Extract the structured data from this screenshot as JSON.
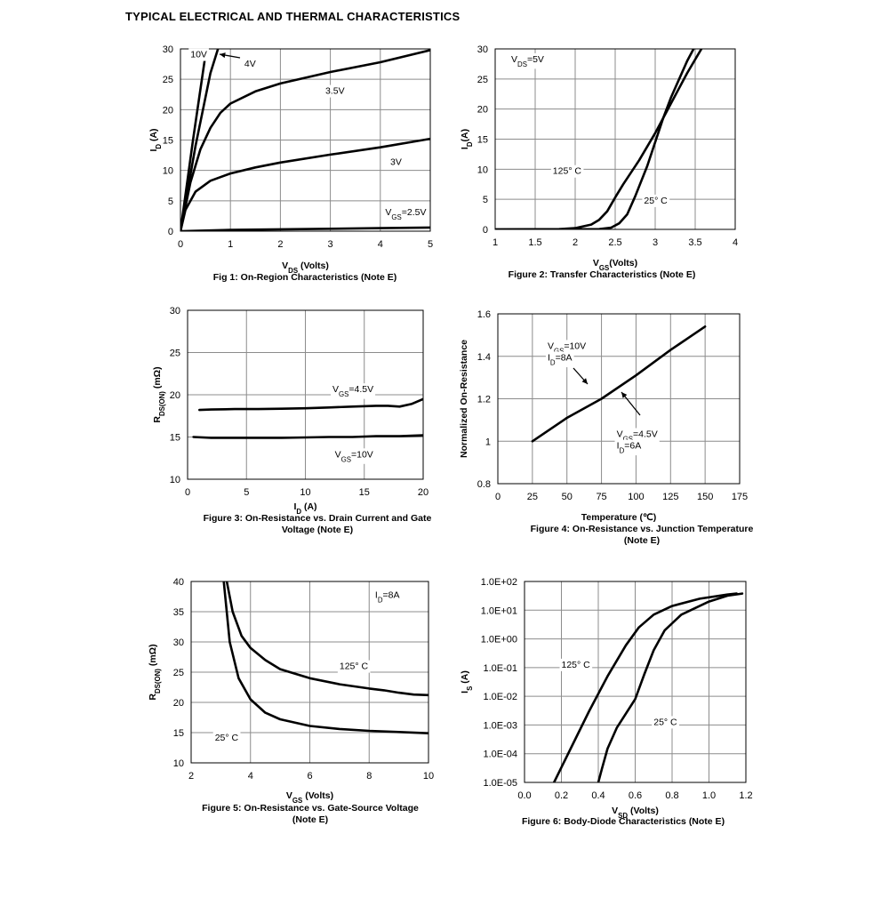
{
  "page_title": "TYPICAL ELECTRICAL AND THERMAL CHARACTERISTICS",
  "chart_data": [
    {
      "id": "fig1",
      "type": "line",
      "caption": "Fig 1: On-Region Characteristics (Note E)",
      "xlabel": "V|DS| (Volts)",
      "ylabel": "I|D| (A)",
      "xlim": [
        0,
        5
      ],
      "ylim": [
        0,
        30
      ],
      "xticks": [
        0,
        1,
        2,
        3,
        4,
        5
      ],
      "yticks": [
        0,
        5,
        10,
        15,
        20,
        25,
        30
      ],
      "xtick_labels": [
        "0",
        "1",
        "2",
        "3",
        "4",
        "5"
      ],
      "ytick_labels": [
        "0",
        "5",
        "10",
        "15",
        "20",
        "25",
        "30"
      ],
      "grid": true,
      "series": [
        {
          "name": "10V",
          "x": [
            0,
            0.25,
            0.5,
            0.48
          ],
          "y": [
            0,
            15,
            29,
            30
          ]
        },
        {
          "name": "4V",
          "x": [
            0,
            0.3,
            0.6,
            0.75
          ],
          "y": [
            0,
            14,
            26,
            30
          ]
        },
        {
          "name": "3.5V",
          "x": [
            0,
            0.2,
            0.4,
            0.6,
            0.8,
            1.0,
            1.5,
            2.0,
            3.0,
            4.0,
            5.0
          ],
          "y": [
            0,
            8,
            13.5,
            17,
            19.5,
            21,
            23,
            24.3,
            26.2,
            27.8,
            29.8
          ]
        },
        {
          "name": "3V",
          "x": [
            0,
            0.1,
            0.3,
            0.6,
            1.0,
            1.5,
            2.0,
            3.0,
            4.0,
            5.0
          ],
          "y": [
            0,
            3.5,
            6.5,
            8.3,
            9.5,
            10.5,
            11.3,
            12.6,
            13.8,
            15.2
          ]
        },
        {
          "name": "V_GS=2.5V",
          "x": [
            0,
            1,
            2,
            3,
            4,
            5
          ],
          "y": [
            0,
            0.2,
            0.3,
            0.4,
            0.5,
            0.6
          ]
        }
      ],
      "annotations": [
        {
          "text": "10V",
          "x": 0.2,
          "y": 28.6
        },
        {
          "text": "4V",
          "x": 1.28,
          "y": 27.1
        },
        {
          "text": "3.5V",
          "x": 2.9,
          "y": 22.6
        },
        {
          "text": "3V",
          "x": 4.2,
          "y": 10.9
        },
        {
          "text": "V|GS|=2.5V",
          "x": 4.1,
          "y": 2.6
        }
      ]
    },
    {
      "id": "fig2",
      "type": "line",
      "caption": "Figure 2: Transfer Characteristics (Note E)",
      "xlabel": "V|GS|(Volts)",
      "ylabel": "I|D|(A)",
      "xlim": [
        1,
        4
      ],
      "ylim": [
        0,
        30
      ],
      "xticks": [
        1,
        1.5,
        2,
        2.5,
        3,
        3.5,
        4
      ],
      "yticks": [
        0,
        5,
        10,
        15,
        20,
        25,
        30
      ],
      "xtick_labels": [
        "1",
        "1.5",
        "2",
        "2.5",
        "3",
        "3.5",
        "4"
      ],
      "ytick_labels": [
        "0",
        "5",
        "10",
        "15",
        "20",
        "25",
        "30"
      ],
      "grid": true,
      "series": [
        {
          "name": "125° C",
          "x": [
            1,
            1.8,
            2.0,
            2.2,
            2.3,
            2.4,
            2.5,
            2.6,
            2.8,
            3.0,
            3.2,
            3.4,
            3.6
          ],
          "y": [
            0,
            0.05,
            0.2,
            0.8,
            1.6,
            3,
            5.3,
            7.5,
            11.5,
            16,
            21,
            26,
            30.5
          ]
        },
        {
          "name": "25° C",
          "x": [
            1,
            2.3,
            2.45,
            2.55,
            2.65,
            2.75,
            2.9,
            3.0,
            3.1,
            3.2,
            3.3,
            3.4,
            3.5
          ],
          "y": [
            0,
            0.05,
            0.3,
            1,
            2.5,
            5.5,
            10.5,
            14.5,
            18.5,
            22,
            25,
            28,
            30.5
          ]
        }
      ],
      "annotations": [
        {
          "text": "V|DS|=5V",
          "x": 1.2,
          "y": 27.8
        },
        {
          "text": "125° C",
          "x": 1.72,
          "y": 9.2
        },
        {
          "text": "25° C",
          "x": 2.86,
          "y": 4.3
        }
      ]
    },
    {
      "id": "fig3",
      "type": "line",
      "caption": [
        "Figure 3: On-Resistance vs. Drain Current and Gate",
        "Voltage (Note E)"
      ],
      "xlabel": "I|D| (A)",
      "ylabel": "R|DS(ON)| (mΩ)",
      "xlim": [
        0,
        20
      ],
      "ylim": [
        10,
        30
      ],
      "xticks": [
        0,
        5,
        10,
        15,
        20
      ],
      "yticks": [
        10,
        15,
        20,
        25,
        30
      ],
      "xtick_labels": [
        "0",
        "5",
        "10",
        "15",
        "20"
      ],
      "ytick_labels": [
        "10",
        "15",
        "20",
        "25",
        "30"
      ],
      "grid": true,
      "series": [
        {
          "name": "V_GS=4.5V",
          "x": [
            1,
            2,
            4,
            6,
            8,
            10,
            12,
            14,
            16,
            17,
            18,
            19,
            20
          ],
          "y": [
            18.2,
            18.25,
            18.3,
            18.3,
            18.35,
            18.4,
            18.5,
            18.6,
            18.7,
            18.7,
            18.6,
            18.9,
            19.5
          ]
        },
        {
          "name": "V_GS=10V",
          "x": [
            0.5,
            2,
            4,
            6,
            8,
            10,
            12,
            14,
            16,
            18,
            20
          ],
          "y": [
            15.0,
            14.9,
            14.9,
            14.9,
            14.9,
            14.95,
            15.0,
            15.0,
            15.1,
            15.1,
            15.2
          ]
        }
      ],
      "annotations": [
        {
          "text": "V|GS|=4.5V",
          "x": 12.3,
          "y": 20.3
        },
        {
          "text": "V|GS|=10V",
          "x": 12.5,
          "y": 12.6
        }
      ]
    },
    {
      "id": "fig4",
      "type": "line",
      "caption": [
        "Figure 4: On-Resistance vs. Junction Temperature",
        "(Note E)"
      ],
      "xlabel": "Temperature (℃)",
      "ylabel": "Normalized On-Resistance",
      "xlim": [
        0,
        175
      ],
      "ylim": [
        0.8,
        1.6
      ],
      "xticks": [
        0,
        25,
        50,
        75,
        100,
        125,
        150,
        175
      ],
      "yticks": [
        0.8,
        1.0,
        1.2,
        1.4,
        1.6
      ],
      "xtick_labels": [
        "0",
        "25",
        "50",
        "75",
        "100",
        "125",
        "150",
        "175"
      ],
      "ytick_labels": [
        "0.8",
        "1",
        "1.2",
        "1.4",
        "1.6"
      ],
      "grid": true,
      "series": [
        {
          "name": "Normalized R_DS(ON)",
          "x": [
            25,
            50,
            75,
            100,
            125,
            150
          ],
          "y": [
            1.0,
            1.11,
            1.2,
            1.31,
            1.43,
            1.54
          ]
        }
      ],
      "annotations": [
        {
          "text": "V|GS|=10V",
          "x": 36,
          "y": 1.435
        },
        {
          "text": "I|D|=8A",
          "x": 36,
          "y": 1.38
        },
        {
          "text": "V|GS|=4.5V",
          "x": 86,
          "y": 1.02
        },
        {
          "text": "I|D|=6A",
          "x": 86,
          "y": 0.965
        }
      ]
    },
    {
      "id": "fig5",
      "type": "line",
      "caption": [
        "Figure 5: On-Resistance vs. Gate-Source Voltage",
        "(Note E)"
      ],
      "xlabel": "V|GS| (Volts)",
      "ylabel": "R|DS(ON)| (mΩ)",
      "xlim": [
        2,
        10
      ],
      "ylim": [
        10,
        40
      ],
      "xticks": [
        2,
        4,
        6,
        8,
        10
      ],
      "yticks": [
        10,
        15,
        20,
        25,
        30,
        35,
        40
      ],
      "xtick_labels": [
        "2",
        "4",
        "6",
        "8",
        "10"
      ],
      "ytick_labels": [
        "10",
        "15",
        "20",
        "25",
        "30",
        "35",
        "40"
      ],
      "grid": true,
      "series": [
        {
          "name": "125° C",
          "x": [
            3.2,
            3.4,
            3.7,
            4.0,
            4.5,
            5.0,
            6.0,
            7.0,
            8.0,
            8.5,
            9.0,
            9.5,
            10.0
          ],
          "y": [
            40,
            35,
            31,
            29,
            27,
            25.5,
            24,
            23,
            22.3,
            22,
            21.6,
            21.3,
            21.2
          ]
        },
        {
          "name": "25° C",
          "x": [
            3.1,
            3.3,
            3.6,
            4.0,
            4.5,
            5.0,
            6.0,
            7.0,
            8.0,
            9.0,
            10.0
          ],
          "y": [
            40,
            30,
            24,
            20.5,
            18.3,
            17.2,
            16.1,
            15.6,
            15.3,
            15.1,
            14.9
          ]
        }
      ],
      "annotations": [
        {
          "text": "I|D|=8A",
          "x": 8.2,
          "y": 37.3
        },
        {
          "text": "125° C",
          "x": 7.0,
          "y": 25.5
        },
        {
          "text": "25° C",
          "x": 2.8,
          "y": 13.7
        }
      ]
    },
    {
      "id": "fig6",
      "type": "line",
      "y_scale": "log",
      "caption": "Figure 6: Body-Diode Characteristics (Note E)",
      "xlabel": "V|SD| (Volts)",
      "ylabel": "I|S| (A)",
      "xlim": [
        0,
        1.2
      ],
      "ylim": [
        1e-05,
        100
      ],
      "xticks": [
        0,
        0.2,
        0.4,
        0.6,
        0.8,
        1.0,
        1.2
      ],
      "yticks": [
        1e-05,
        0.0001,
        0.001,
        0.01,
        0.1,
        1,
        10,
        100
      ],
      "xtick_labels": [
        "0.0",
        "0.2",
        "0.4",
        "0.6",
        "0.8",
        "1.0",
        "1.2"
      ],
      "ytick_labels": [
        "1.0E-05",
        "1.0E-04",
        "1.0E-03",
        "1.0E-02",
        "1.0E-01",
        "1.0E+00",
        "1.0E+01",
        "1.0E+02"
      ],
      "grid": true,
      "series": [
        {
          "name": "125° C",
          "x": [
            0.16,
            0.25,
            0.35,
            0.45,
            0.55,
            0.62,
            0.7,
            0.8,
            0.95,
            1.1,
            1.15
          ],
          "y": [
            1e-05,
            0.00015,
            0.003,
            0.05,
            0.6,
            2.5,
            7,
            14,
            25,
            35,
            38
          ]
        },
        {
          "name": "25° C",
          "x": [
            0.4,
            0.42,
            0.45,
            0.5,
            0.6,
            0.65,
            0.7,
            0.76,
            0.85,
            1.0,
            1.1,
            1.18
          ],
          "y": [
            1e-05,
            3e-05,
            0.00015,
            0.0008,
            0.008,
            0.06,
            0.4,
            2,
            7,
            20,
            32,
            38
          ]
        }
      ],
      "annotations": [
        {
          "text": "125° C",
          "x": 0.2,
          "y": 0.1
        },
        {
          "text": "25° C",
          "x": 0.7,
          "y": 0.001
        }
      ]
    }
  ]
}
